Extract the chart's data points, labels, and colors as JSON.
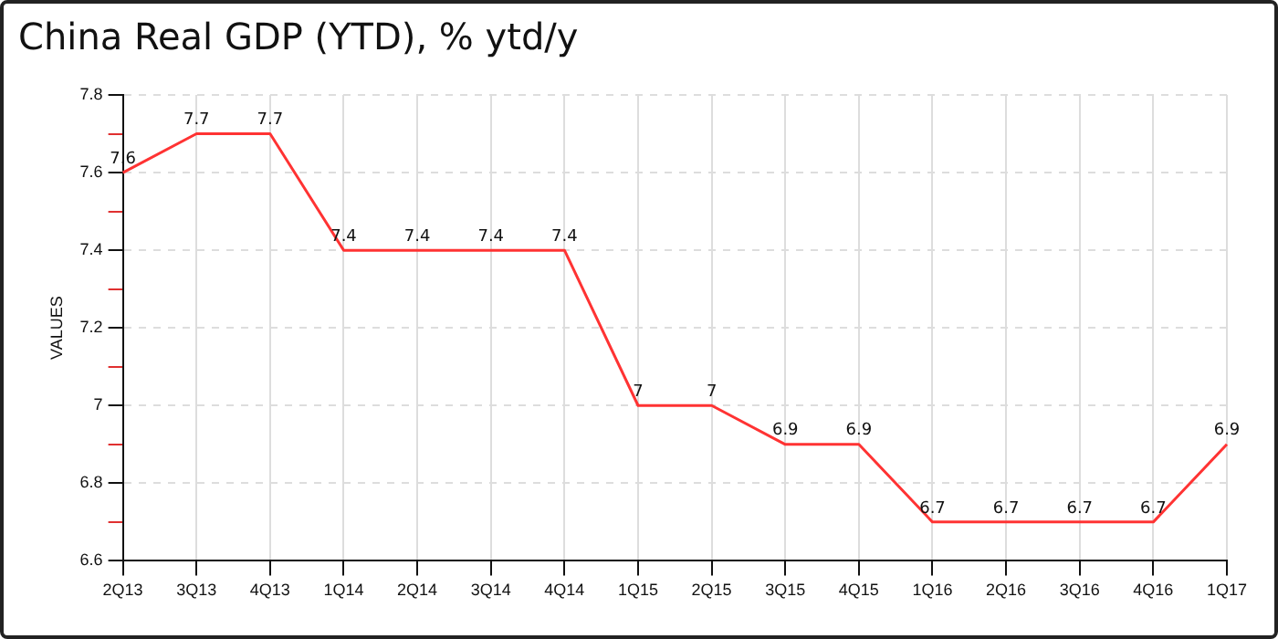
{
  "chart_data": {
    "type": "line",
    "title": "China Real GDP (YTD), % ytd/y",
    "ylabel": "VALUES",
    "categories": [
      "2Q13",
      "3Q13",
      "4Q13",
      "1Q14",
      "2Q14",
      "3Q14",
      "4Q14",
      "1Q15",
      "2Q15",
      "3Q15",
      "4Q15",
      "1Q16",
      "2Q16",
      "3Q16",
      "4Q16",
      "1Q17"
    ],
    "series": [
      {
        "color": "#ff3333",
        "values": [
          7.6,
          7.7,
          7.7,
          7.4,
          7.4,
          7.4,
          7.4,
          7,
          7,
          6.9,
          6.9,
          6.7,
          6.7,
          6.7,
          6.7,
          6.9
        ]
      }
    ],
    "ylim": [
      6.6,
      7.8
    ],
    "yticks": [
      6.6,
      {
        "value": 6.7,
        "label": null
      },
      6.8,
      {
        "value": 6.9,
        "label": null
      },
      7,
      {
        "value": 7.1,
        "label": null
      },
      7.2,
      {
        "value": 7.3,
        "label": null
      },
      7.4,
      {
        "value": 7.5,
        "label": null
      },
      7.6,
      {
        "value": 7.7,
        "label": null
      },
      7.8
    ],
    "grid": true,
    "legend": false,
    "marker": "none",
    "line_style": "solid",
    "data_labels": true
  }
}
